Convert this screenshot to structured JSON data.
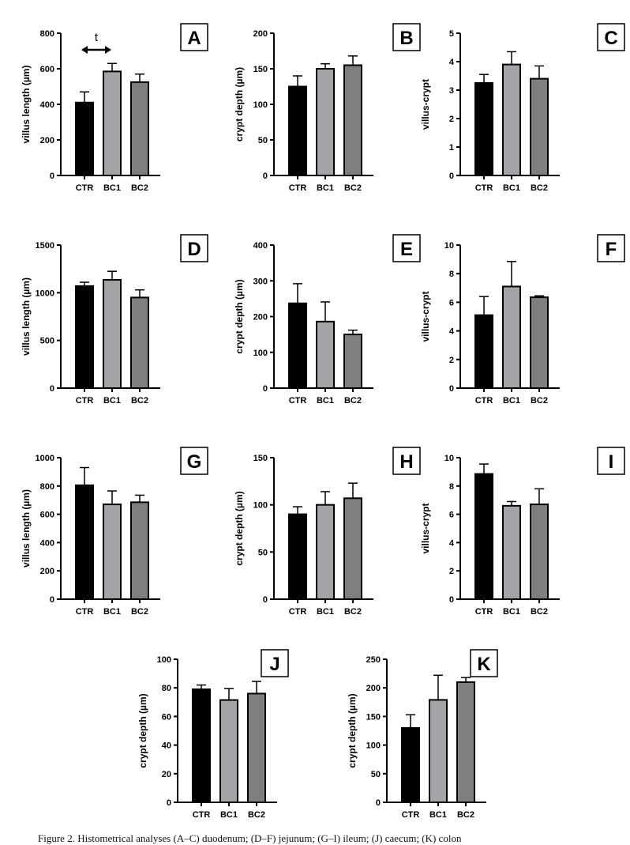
{
  "caption": "Figure 2. Histometrical analyses (A–C) duodenum; (D–F) jejunum; (G–I) ileum; (J) caecum; (K) colon",
  "colors": {
    "CTR": "#000000",
    "BC1": "#a3a3a8",
    "BC2": "#7f7f7f",
    "outline": "#000000"
  },
  "chart_data": [
    {
      "panel": "A",
      "type": "bar",
      "categories": [
        "CTR",
        "BC1",
        "BC2"
      ],
      "values": [
        410,
        585,
        525
      ],
      "errors": [
        60,
        45,
        45
      ],
      "ylabel": "villus length (µm)",
      "ylim": [
        0,
        800
      ],
      "yticks": [
        0,
        200,
        400,
        600,
        800
      ],
      "annotation": "t",
      "grid": false
    },
    {
      "panel": "B",
      "type": "bar",
      "categories": [
        "CTR",
        "BC1",
        "BC2"
      ],
      "values": [
        125,
        150,
        155
      ],
      "errors": [
        15,
        7,
        13
      ],
      "ylabel": "crypt depth (µm)",
      "ylim": [
        0,
        200
      ],
      "yticks": [
        0,
        50,
        100,
        150,
        200
      ],
      "grid": false
    },
    {
      "panel": "C",
      "type": "bar",
      "categories": [
        "CTR",
        "BC1",
        "BC2"
      ],
      "values": [
        3.25,
        3.9,
        3.4
      ],
      "errors": [
        0.3,
        0.45,
        0.45
      ],
      "ylabel": "villus-crypt",
      "ylim": [
        0,
        5
      ],
      "yticks": [
        0,
        1,
        2,
        3,
        4,
        5
      ],
      "grid": false
    },
    {
      "panel": "D",
      "type": "bar",
      "categories": [
        "CTR",
        "BC1",
        "BC2"
      ],
      "values": [
        1070,
        1135,
        950
      ],
      "errors": [
        40,
        90,
        80
      ],
      "ylabel": "villus length (µm)",
      "ylim": [
        0,
        1500
      ],
      "yticks": [
        0,
        500,
        1000,
        1500
      ],
      "grid": false
    },
    {
      "panel": "E",
      "type": "bar",
      "categories": [
        "CTR",
        "BC1",
        "BC2"
      ],
      "values": [
        237,
        186,
        150
      ],
      "errors": [
        55,
        55,
        12
      ],
      "ylabel": "crypt depth (µm)",
      "ylim": [
        0,
        400
      ],
      "yticks": [
        0,
        100,
        200,
        300,
        400
      ],
      "grid": false
    },
    {
      "panel": "F",
      "type": "bar",
      "categories": [
        "CTR",
        "BC1",
        "BC2"
      ],
      "values": [
        5.1,
        7.1,
        6.35
      ],
      "errors": [
        1.3,
        1.75,
        0.1
      ],
      "ylabel": "villus-crypt",
      "ylim": [
        0,
        10
      ],
      "yticks": [
        0,
        2,
        4,
        6,
        8,
        10
      ],
      "grid": false
    },
    {
      "panel": "G",
      "type": "bar",
      "categories": [
        "CTR",
        "BC1",
        "BC2"
      ],
      "values": [
        805,
        670,
        685
      ],
      "errors": [
        125,
        95,
        50
      ],
      "ylabel": "villus length (µm)",
      "ylim": [
        0,
        1000
      ],
      "yticks": [
        0,
        200,
        400,
        600,
        800,
        1000
      ],
      "grid": false
    },
    {
      "panel": "H",
      "type": "bar",
      "categories": [
        "CTR",
        "BC1",
        "BC2"
      ],
      "values": [
        90,
        100,
        107
      ],
      "errors": [
        8,
        14,
        16
      ],
      "ylabel": "crypt depth (µm)",
      "ylim": [
        0,
        150
      ],
      "yticks": [
        0,
        50,
        100,
        150
      ],
      "grid": false
    },
    {
      "panel": "I",
      "type": "bar",
      "categories": [
        "CTR",
        "BC1",
        "BC2"
      ],
      "values": [
        8.85,
        6.6,
        6.7
      ],
      "errors": [
        0.7,
        0.3,
        1.1
      ],
      "ylabel": "villus-crypt",
      "ylim": [
        0,
        10
      ],
      "yticks": [
        0,
        2,
        4,
        6,
        8,
        10
      ],
      "grid": false
    },
    {
      "panel": "J",
      "type": "bar",
      "categories": [
        "CTR",
        "BC1",
        "BC2"
      ],
      "values": [
        79,
        71.5,
        76
      ],
      "errors": [
        3,
        8,
        8.5
      ],
      "ylabel": "crypt depth (µm)",
      "ylim": [
        0,
        100
      ],
      "yticks": [
        0,
        20,
        40,
        60,
        80,
        100
      ],
      "grid": false
    },
    {
      "panel": "K",
      "type": "bar",
      "categories": [
        "CTR",
        "BC1",
        "BC2"
      ],
      "values": [
        130,
        179,
        210
      ],
      "errors": [
        23,
        43,
        8
      ],
      "ylabel": "crypt depth (µm)",
      "ylim": [
        0,
        250
      ],
      "yticks": [
        0,
        50,
        100,
        150,
        200,
        250
      ],
      "grid": false
    }
  ]
}
